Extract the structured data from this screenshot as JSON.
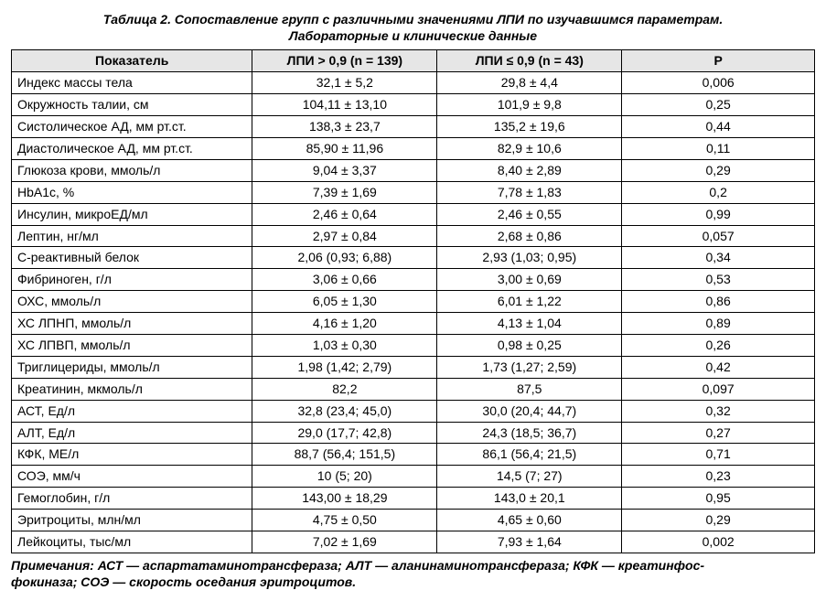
{
  "title_line1": "Таблица 2. Сопоставление групп с различными значениями ЛПИ по изучавшимся параметрам.",
  "title_line2": "Лабораторные и клинические данные",
  "headers": {
    "param": "Показатель",
    "g1": "ЛПИ > 0,9 (n = 139)",
    "g2": "ЛПИ ≤ 0,9 (n = 43)",
    "p": "P"
  },
  "rows": [
    {
      "param": "Индекс массы тела",
      "g1": "32,1 ± 5,2",
      "g2": "29,8 ± 4,4",
      "p": "0,006"
    },
    {
      "param": "Окружность талии, см",
      "g1": "104,11 ± 13,10",
      "g2": "101,9 ± 9,8",
      "p": "0,25"
    },
    {
      "param": "Систолическое АД, мм рт.ст.",
      "g1": "138,3 ± 23,7",
      "g2": "135,2 ± 19,6",
      "p": "0,44"
    },
    {
      "param": "Диастолическое АД, мм рт.ст.",
      "g1": "85,90 ± 11,96",
      "g2": "82,9 ± 10,6",
      "p": "0,11"
    },
    {
      "param": "Глюкоза крови, ммоль/л",
      "g1": "9,04 ± 3,37",
      "g2": "8,40 ± 2,89",
      "p": "0,29"
    },
    {
      "param": "HbA1c, %",
      "g1": "7,39 ± 1,69",
      "g2": "7,78 ± 1,83",
      "p": "0,2"
    },
    {
      "param": "Инсулин, микроЕД/мл",
      "g1": "2,46 ± 0,64",
      "g2": "2,46 ± 0,55",
      "p": "0,99"
    },
    {
      "param": "Лептин, нг/мл",
      "g1": "2,97 ± 0,84",
      "g2": "2,68 ± 0,86",
      "p": "0,057"
    },
    {
      "param": "С-реактивный белок",
      "g1": "2,06 (0,93; 6,88)",
      "g2": "2,93 (1,03; 0,95)",
      "p": "0,34"
    },
    {
      "param": "Фибриноген, г/л",
      "g1": "3,06 ± 0,66",
      "g2": "3,00 ± 0,69",
      "p": "0,53"
    },
    {
      "param": "ОХС, ммоль/л",
      "g1": "6,05 ± 1,30",
      "g2": "6,01 ± 1,22",
      "p": "0,86"
    },
    {
      "param": "ХС ЛПНП, ммоль/л",
      "g1": "4,16 ± 1,20",
      "g2": "4,13 ± 1,04",
      "p": "0,89"
    },
    {
      "param": "ХС ЛПВП, ммоль/л",
      "g1": "1,03 ± 0,30",
      "g2": "0,98 ± 0,25",
      "p": "0,26"
    },
    {
      "param": "Триглицериды, ммоль/л",
      "g1": "1,98 (1,42; 2,79)",
      "g2": "1,73 (1,27; 2,59)",
      "p": "0,42"
    },
    {
      "param": "Креатинин, мкмоль/л",
      "g1": "82,2",
      "g2": "87,5",
      "p": "0,097"
    },
    {
      "param": "АСТ, Ед/л",
      "g1": "32,8 (23,4; 45,0)",
      "g2": "30,0 (20,4; 44,7)",
      "p": "0,32"
    },
    {
      "param": "АЛТ, Ед/л",
      "g1": "29,0 (17,7; 42,8)",
      "g2": "24,3 (18,5; 36,7)",
      "p": "0,27"
    },
    {
      "param": "КФК, МЕ/л",
      "g1": "88,7 (56,4; 151,5)",
      "g2": "86,1 (56,4; 21,5)",
      "p": "0,71"
    },
    {
      "param": "СОЭ, мм/ч",
      "g1": "10 (5; 20)",
      "g2": "14,5 (7; 27)",
      "p": "0,23"
    },
    {
      "param": "Гемоглобин, г/л",
      "g1": "143,00 ± 18,29",
      "g2": "143,0 ± 20,1",
      "p": "0,95"
    },
    {
      "param": "Эритроциты, млн/мл",
      "g1": "4,75 ± 0,50",
      "g2": "4,65 ± 0,60",
      "p": "0,29"
    },
    {
      "param": "Лейкоциты, тыс/мл",
      "g1": "7,02 ± 1,69",
      "g2": "7,93 ± 1,64",
      "p": "0,002"
    }
  ],
  "notes_line1": "Примечания: АСТ — аспартатаминотрансфераза; АЛТ — аланинаминотрансфераза; КФК — креатинфос-",
  "notes_line2": "фокиназа; СОЭ — скорость оседания эритроцитов."
}
